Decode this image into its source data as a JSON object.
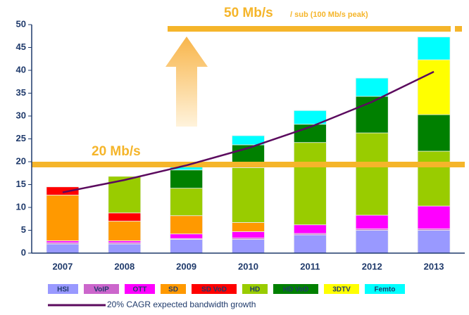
{
  "chart_data": {
    "type": "bar",
    "stacked": true,
    "categories": [
      "2007",
      "2008",
      "2009",
      "2010",
      "2011",
      "2012",
      "2013"
    ],
    "ylim": [
      0,
      50
    ],
    "yticks": [
      0,
      5,
      10,
      15,
      20,
      25,
      30,
      35,
      40,
      45,
      50
    ],
    "series": [
      {
        "name": "HSI",
        "color": "#9999ff",
        "values": [
          2,
          2,
          3,
          3,
          4,
          5,
          5
        ]
      },
      {
        "name": "VoIP",
        "color": "#cc66cc",
        "values": [
          0.3,
          0.3,
          0.2,
          0.3,
          0.3,
          0.3,
          0.3
        ]
      },
      {
        "name": "OTT",
        "color": "#ff00ff",
        "values": [
          0.4,
          0.4,
          1,
          1.4,
          1.9,
          3,
          5
        ]
      },
      {
        "name": "SD",
        "color": "#ff9900",
        "values": [
          10,
          4.3,
          4,
          2,
          0,
          0,
          0
        ]
      },
      {
        "name": "SD VoD",
        "color": "#ff0000",
        "values": [
          1.8,
          1.8,
          0,
          0,
          0,
          0,
          0
        ]
      },
      {
        "name": "HD",
        "color": "#99cc00",
        "values": [
          0,
          8,
          6,
          12,
          18,
          18,
          12
        ]
      },
      {
        "name": "HD VoD",
        "color": "#008000",
        "values": [
          0,
          0,
          4,
          5,
          4,
          8,
          8
        ]
      },
      {
        "name": "3DTV",
        "color": "#ffff00",
        "values": [
          0,
          0,
          0,
          0,
          0,
          0,
          12
        ]
      },
      {
        "name": "Femto",
        "color": "#00ffff",
        "values": [
          0,
          0,
          0.8,
          2,
          3,
          4,
          5
        ]
      }
    ],
    "line": {
      "name": "20% CAGR expected  bandwidth growth",
      "color": "#5b0a5e",
      "values": [
        13.3,
        16,
        19.2,
        23,
        27.6,
        33.1,
        39.7
      ]
    },
    "annotations": [
      "20 Mb/s",
      "50 Mb/s",
      "/ sub (100 Mb/s peak)"
    ]
  }
}
